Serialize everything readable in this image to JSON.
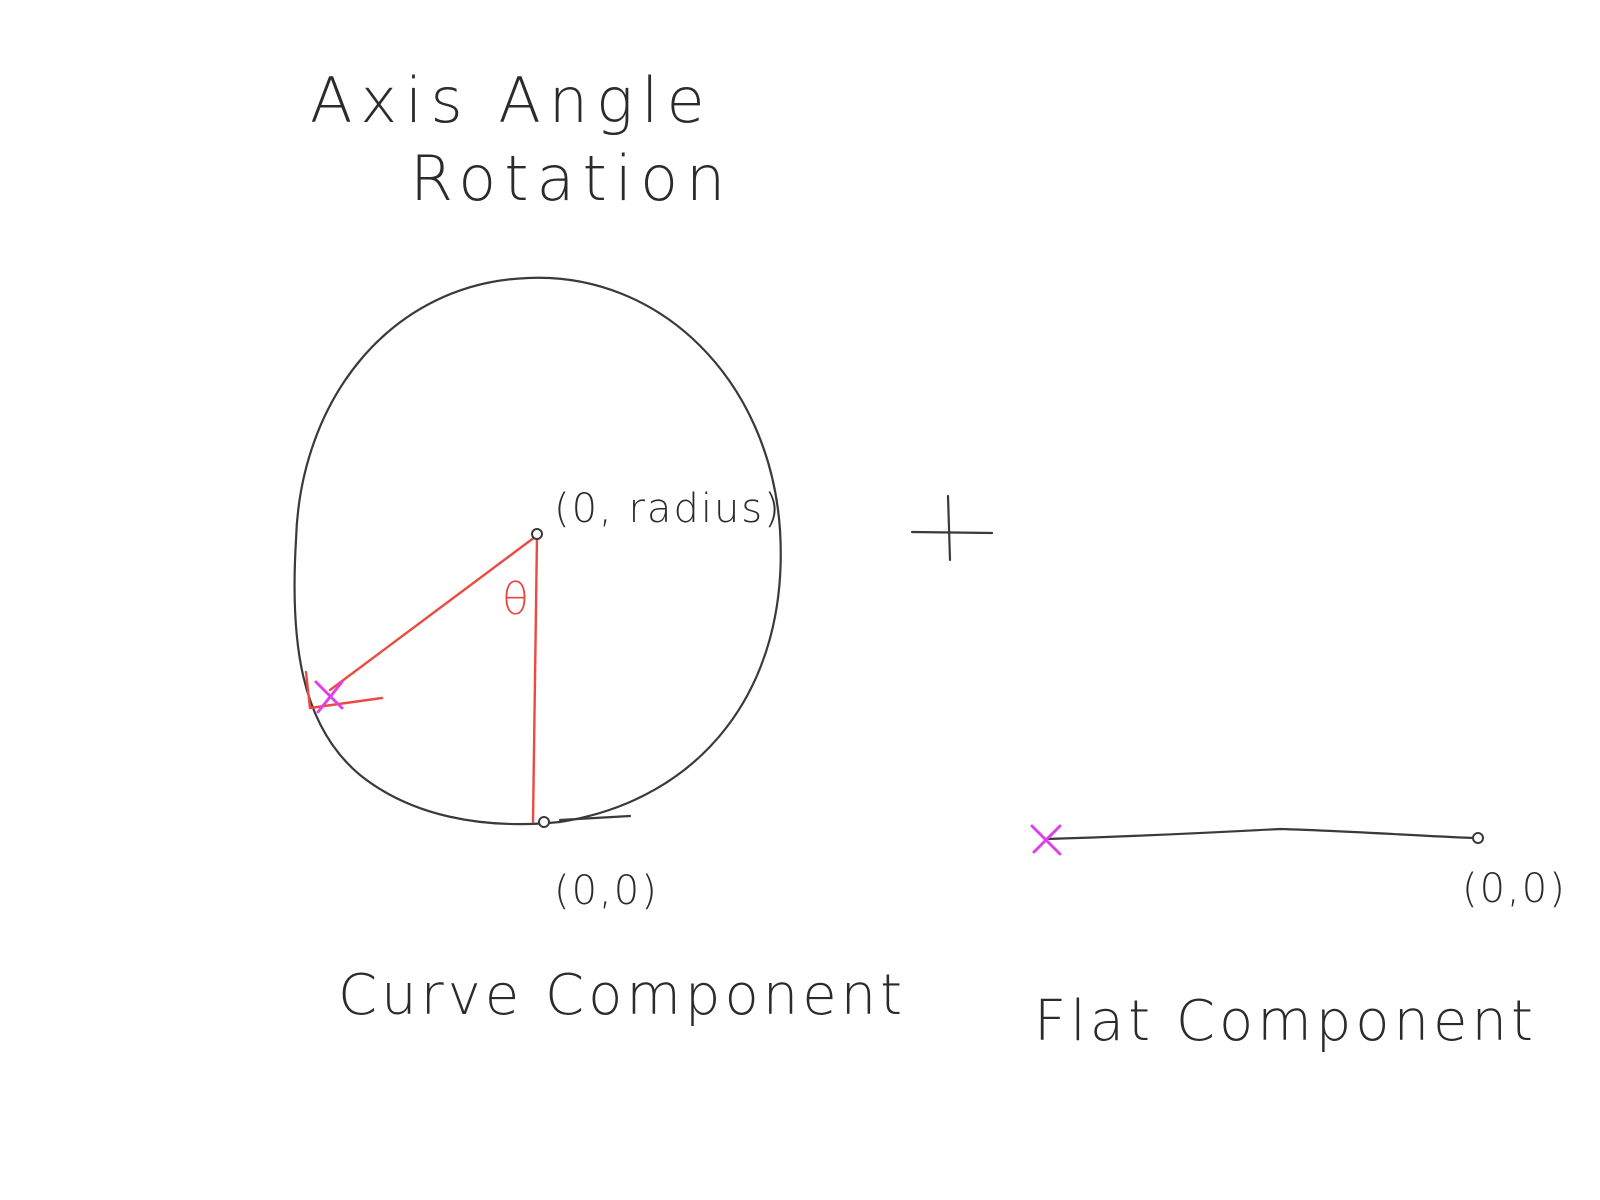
{
  "title": {
    "line1": "Axis Angle",
    "line2": "Rotation"
  },
  "curve_diagram": {
    "top_point_label": "(0, radius)",
    "origin_label": "(0,0)",
    "angle_symbol": "θ",
    "caption": "Curve Component"
  },
  "operator": "+",
  "flat_diagram": {
    "origin_label": "(0,0)",
    "caption": "Flat Component"
  },
  "colors": {
    "ink": "#3a3a3a",
    "radius_lines": "#ec4a40",
    "marker": "#e040e8"
  }
}
